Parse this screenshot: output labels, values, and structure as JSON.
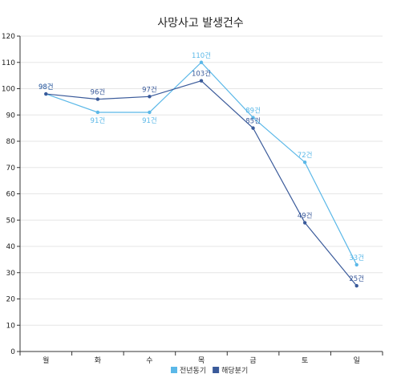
{
  "chart_data": {
    "type": "line",
    "title": "사망사고 발생건수",
    "categories": [
      "월",
      "화",
      "수",
      "목",
      "금",
      "토",
      "일"
    ],
    "ylim": [
      0,
      120
    ],
    "yticks": [
      0,
      10,
      20,
      30,
      40,
      50,
      60,
      70,
      80,
      90,
      100,
      110,
      120
    ],
    "grid": true,
    "legend_position": "bottom-center",
    "value_suffix": "건",
    "series": [
      {
        "name": "전년동기",
        "color": "#5bb8e8",
        "values": [
          98,
          91,
          91,
          110,
          89,
          72,
          33
        ],
        "label_position": "mixed"
      },
      {
        "name": "해당분기",
        "color": "#3a5a9a",
        "values": [
          98,
          96,
          97,
          103,
          85,
          49,
          25
        ],
        "label_position": "above"
      }
    ]
  }
}
